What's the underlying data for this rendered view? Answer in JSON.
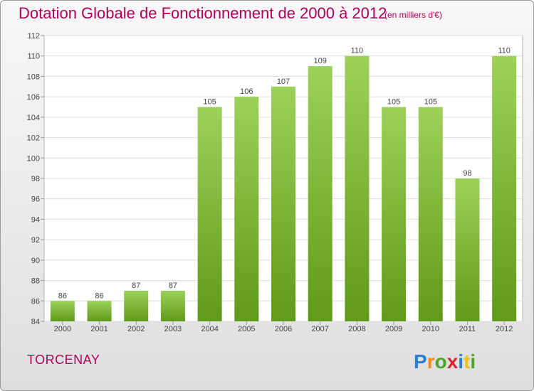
{
  "title": "Dotation Globale de Fonctionnement de 2000 à 2012",
  "subtitle": "(en milliers d'€)",
  "town": "TORCENAY",
  "logo_text": "Proxiti",
  "colors": {
    "title": "#b0005a",
    "bar_top": "#9dd15a",
    "bar_bottom": "#5f9a18"
  },
  "chart_data": {
    "type": "bar",
    "categories": [
      "2000",
      "2001",
      "2002",
      "2003",
      "2004",
      "2005",
      "2006",
      "2007",
      "2008",
      "2009",
      "2010",
      "2011",
      "2012"
    ],
    "values": [
      86,
      86,
      87,
      87,
      105,
      106,
      107,
      109,
      110,
      105,
      105,
      98,
      110
    ],
    "ylim": [
      84,
      112
    ],
    "yticks": [
      84,
      86,
      88,
      90,
      92,
      94,
      96,
      98,
      100,
      102,
      104,
      106,
      108,
      110,
      112
    ],
    "grid": true,
    "data_labels": true
  }
}
